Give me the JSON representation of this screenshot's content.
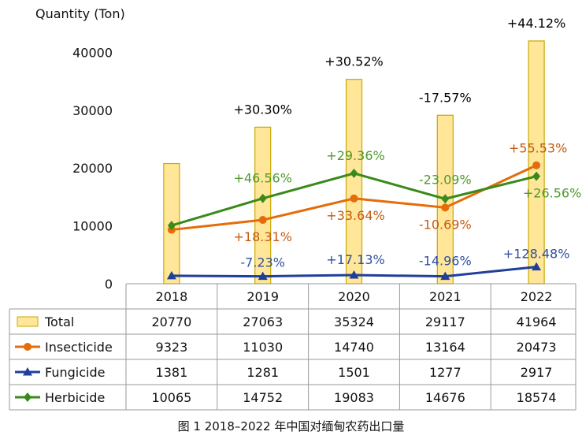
{
  "chart_data": {
    "type": "bar",
    "ylabel": "Quantity (Ton)",
    "ylim": [
      0,
      44000
    ],
    "yticks": [
      0,
      10000,
      20000,
      30000,
      40000
    ],
    "categories": [
      "2018",
      "2019",
      "2020",
      "2021",
      "2022"
    ],
    "series": [
      {
        "name": "Total",
        "kind": "bar",
        "color": "#FFE699",
        "stroke": "#C9A900",
        "values": [
          20770,
          27063,
          35324,
          29117,
          41964
        ],
        "growth": [
          "",
          "+30.30%",
          "+30.52%",
          "-17.57%",
          "+44.12%"
        ],
        "growth_color": "#000000"
      },
      {
        "name": "Insecticide",
        "kind": "line",
        "marker": "circle",
        "color": "#E46C0A",
        "values": [
          9323,
          11030,
          14740,
          13164,
          20473
        ],
        "growth": [
          "",
          "+18.31%",
          "+33.64%",
          "-10.69%",
          "+55.53%"
        ],
        "growth_color": "#C55A11"
      },
      {
        "name": "Fungicide",
        "kind": "line",
        "marker": "triangle",
        "color": "#1F3F99",
        "values": [
          1381,
          1281,
          1501,
          1277,
          2917
        ],
        "growth": [
          "",
          "-7.23%",
          "+17.13%",
          "-14.96%",
          "+128.48%"
        ],
        "growth_color": "#2F4F9F"
      },
      {
        "name": "Herbicide",
        "kind": "line",
        "marker": "diamond",
        "color": "#3A8A1A",
        "values": [
          10065,
          14752,
          19083,
          14676,
          18574
        ],
        "growth": [
          "",
          "+46.56%",
          "+29.36%",
          "-23.09%",
          "+26.56%"
        ],
        "growth_color": "#4E9A2E"
      }
    ]
  },
  "caption": "图 1  2018–2022 年中国对缅甸农药出口量"
}
